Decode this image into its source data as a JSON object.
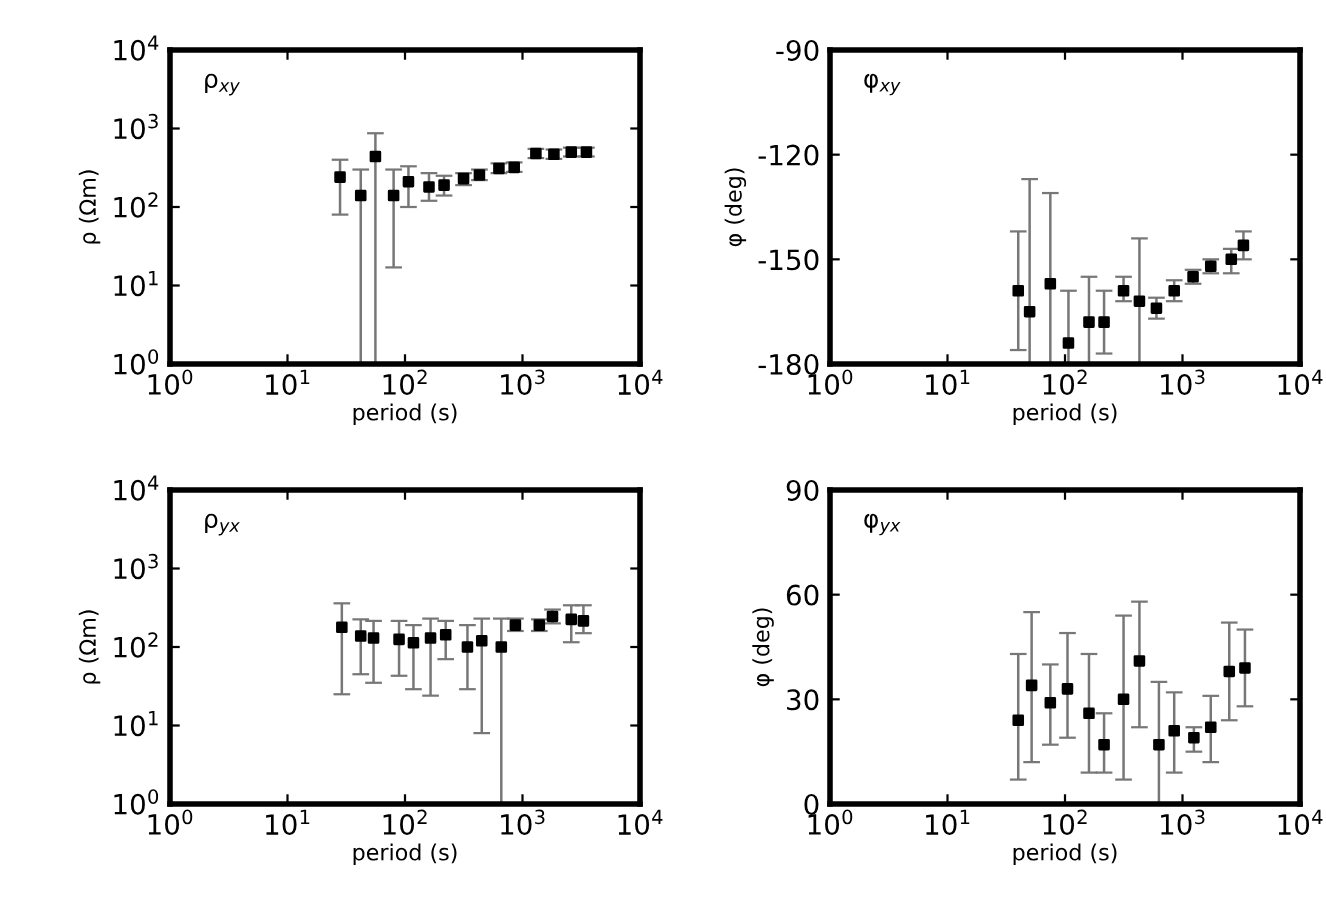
{
  "chart_data": [
    {
      "type": "scatter",
      "xlabel": "period (s)",
      "ylabel": "ρ (Ωm)",
      "annotations": [
        "ρ$_{xy}$"
      ],
      "log": "xy",
      "marker": "square",
      "grid": false,
      "xlim": [
        1,
        10000
      ],
      "xticks": [
        {
          "value": 1,
          "label": "10$^{0}$"
        },
        {
          "value": 10,
          "label": "10$^{1}$"
        },
        {
          "value": 100,
          "label": "10$^{2}$"
        },
        {
          "value": 1000,
          "label": "10$^{3}$"
        },
        {
          "value": 10000,
          "label": "10$^{4}$"
        }
      ],
      "ylim": [
        1,
        10000
      ],
      "yticks": [
        {
          "value": 1,
          "label": "10$^{0}$"
        },
        {
          "value": 10,
          "label": "10$^{1}$"
        },
        {
          "value": 100,
          "label": "10$^{2}$"
        },
        {
          "value": 1000,
          "label": "10$^{3}$"
        },
        {
          "value": 10000,
          "label": "10$^{4}$"
        }
      ],
      "series": [
        {
          "color": "#000000",
          "x": [
            28,
            42,
            56,
            80,
            107,
            160,
            215,
            315,
            430,
            630,
            850,
            1300,
            1850,
            2600,
            3500
          ],
          "values": [
            240,
            140,
            440,
            140,
            210,
            180,
            190,
            230,
            255,
            310,
            320,
            480,
            470,
            500,
            500
          ],
          "errors": [
            [
              80,
              400
            ],
            [
              1,
              300
            ],
            [
              1,
              870
            ],
            [
              17,
              300
            ],
            [
              100,
              330
            ],
            [
              120,
              270
            ],
            [
              140,
              250
            ],
            [
              190,
              270
            ],
            [
              220,
              300
            ],
            [
              270,
              360
            ],
            [
              280,
              370
            ],
            [
              420,
              550
            ],
            [
              410,
              540
            ],
            [
              440,
              570
            ],
            [
              440,
              570
            ]
          ]
        }
      ]
    },
    {
      "type": "scatter",
      "xlabel": "period (s)",
      "ylabel": "φ (deg)",
      "annotations": [
        "φ$_{xy}$"
      ],
      "log": "x",
      "marker": "square",
      "grid": false,
      "xlim": [
        1,
        10000
      ],
      "xticks": [
        {
          "value": 1,
          "label": "10$^{0}$"
        },
        {
          "value": 10,
          "label": "10$^{1}$"
        },
        {
          "value": 100,
          "label": "10$^{2}$"
        },
        {
          "value": 1000,
          "label": "10$^{3}$"
        },
        {
          "value": 10000,
          "label": "10$^{4}$"
        }
      ],
      "ylim": [
        -180,
        -90
      ],
      "yticks": [
        -180,
        -150,
        -120,
        -90
      ],
      "series": [
        {
          "color": "#000000",
          "x": [
            40,
            50,
            75,
            107,
            160,
            215,
            315,
            430,
            600,
            850,
            1230,
            1740,
            2600,
            3300
          ],
          "values": [
            -159,
            -165,
            -157,
            -174,
            -168,
            -168,
            -159,
            -162,
            -164,
            -159,
            -155,
            -152,
            -150,
            -146
          ],
          "errors": [
            [
              -176,
              -142
            ],
            [
              -180,
              -127
            ],
            [
              -180,
              -131
            ],
            [
              -180,
              -159
            ],
            [
              -180,
              -155
            ],
            [
              -177,
              -159
            ],
            [
              -162,
              -155
            ],
            [
              -180,
              -144
            ],
            [
              -167,
              -161
            ],
            [
              -162,
              -156
            ],
            [
              -157,
              -153
            ],
            [
              -154,
              -150
            ],
            [
              -154,
              -147
            ],
            [
              -150,
              -142
            ]
          ]
        }
      ]
    },
    {
      "type": "scatter",
      "xlabel": "period (s)",
      "ylabel": "ρ (Ωm)",
      "annotations": [
        "ρ$_{yx}$"
      ],
      "log": "xy",
      "marker": "square",
      "grid": false,
      "xlim": [
        1,
        10000
      ],
      "xticks": [
        {
          "value": 1,
          "label": "10$^{0}$"
        },
        {
          "value": 10,
          "label": "10$^{1}$"
        },
        {
          "value": 100,
          "label": "10$^{2}$"
        },
        {
          "value": 1000,
          "label": "10$^{3}$"
        },
        {
          "value": 10000,
          "label": "10$^{4}$"
        }
      ],
      "ylim": [
        1,
        10000
      ],
      "yticks": [
        {
          "value": 1,
          "label": "10$^{0}$"
        },
        {
          "value": 10,
          "label": "10$^{1}$"
        },
        {
          "value": 100,
          "label": "10$^{2}$"
        },
        {
          "value": 1000,
          "label": "10$^{3}$"
        },
        {
          "value": 10000,
          "label": "10$^{4}$"
        }
      ],
      "series": [
        {
          "color": "#000000",
          "x": [
            29,
            42,
            54,
            89,
            118,
            165,
            222,
            340,
            450,
            660,
            870,
            1390,
            1800,
            2600,
            3300
          ],
          "values": [
            178,
            138,
            130,
            125,
            113,
            130,
            143,
            100,
            120,
            100,
            190,
            190,
            245,
            225,
            215
          ],
          "errors": [
            [
              25,
              360
            ],
            [
              45,
              225
            ],
            [
              35,
              215
            ],
            [
              43,
              215
            ],
            [
              29,
              190
            ],
            [
              24,
              230
            ],
            [
              70,
              215
            ],
            [
              29,
              190
            ],
            [
              8,
              230
            ],
            [
              1,
              230
            ],
            [
              160,
              230
            ],
            [
              160,
              225
            ],
            [
              200,
              300
            ],
            [
              115,
              340
            ],
            [
              150,
              340
            ]
          ]
        }
      ]
    },
    {
      "type": "scatter",
      "xlabel": "period (s)",
      "ylabel": "φ (deg)",
      "annotations": [
        "φ$_{yx}$"
      ],
      "log": "x",
      "marker": "square",
      "grid": false,
      "xlim": [
        1,
        10000
      ],
      "xticks": [
        {
          "value": 1,
          "label": "10$^{0}$"
        },
        {
          "value": 10,
          "label": "10$^{1}$"
        },
        {
          "value": 100,
          "label": "10$^{2}$"
        },
        {
          "value": 1000,
          "label": "10$^{3}$"
        },
        {
          "value": 10000,
          "label": "10$^{4}$"
        }
      ],
      "ylim": [
        0,
        90
      ],
      "yticks": [
        0,
        30,
        60,
        90
      ],
      "series": [
        {
          "color": "#000000",
          "x": [
            40,
            52,
            75,
            105,
            160,
            215,
            315,
            430,
            630,
            850,
            1250,
            1740,
            2500,
            3400
          ],
          "values": [
            24,
            34,
            29,
            33,
            26,
            17,
            30,
            41,
            17,
            21,
            19,
            22,
            38,
            39
          ],
          "errors": [
            [
              7,
              43
            ],
            [
              12,
              55
            ],
            [
              17,
              40
            ],
            [
              19,
              49
            ],
            [
              9,
              43
            ],
            [
              9,
              26
            ],
            [
              7,
              54
            ],
            [
              22,
              58
            ],
            [
              0,
              35
            ],
            [
              9,
              32
            ],
            [
              15,
              22
            ],
            [
              12,
              31
            ],
            [
              24,
              52
            ],
            [
              28,
              50
            ]
          ]
        }
      ]
    }
  ]
}
